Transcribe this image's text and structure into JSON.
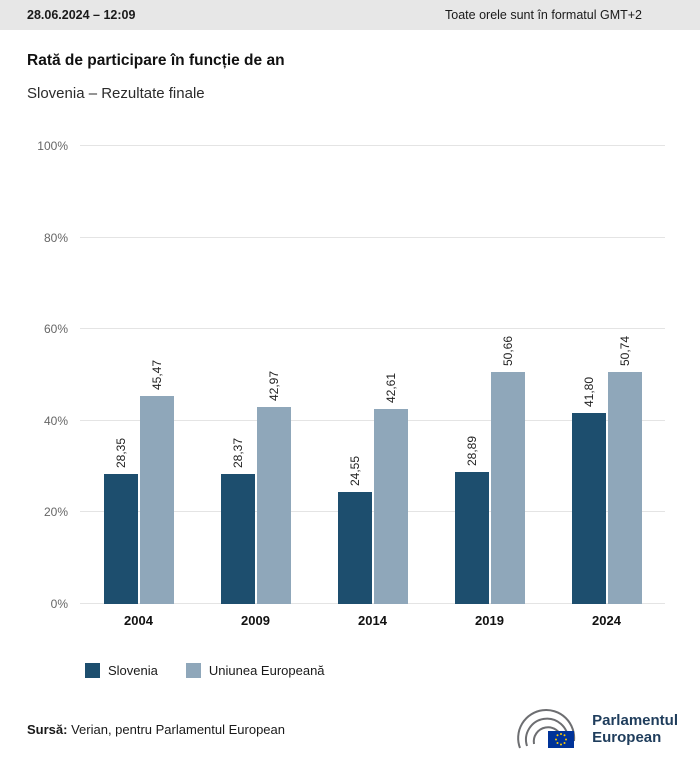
{
  "header": {
    "datetime": "28.06.2024 – 12:09",
    "timezone_note": "Toate orele sunt în formatul GMT+2"
  },
  "title": "Rată de participare în funcție de an",
  "subtitle": "Slovenia – Rezultate finale",
  "chart_data": {
    "type": "bar",
    "categories": [
      "2004",
      "2009",
      "2014",
      "2019",
      "2024"
    ],
    "series": [
      {
        "name": "Slovenia",
        "color": "#1d4e6e",
        "values": [
          28.35,
          28.37,
          24.55,
          28.89,
          41.8
        ],
        "labels": [
          "28,35",
          "28,37",
          "24,55",
          "28,89",
          "41,80"
        ]
      },
      {
        "name": "Uniunea Europeană",
        "color": "#8fa7ba",
        "values": [
          45.47,
          42.97,
          42.61,
          50.66,
          50.74
        ],
        "labels": [
          "45,47",
          "42,97",
          "42,61",
          "50,66",
          "50,74"
        ]
      }
    ],
    "title": "Rată de participare în funcție de an",
    "subtitle": "Slovenia – Rezultate finale",
    "xlabel": "",
    "ylabel": "",
    "ylim": [
      0,
      100
    ],
    "yticks": [
      "0%",
      "20%",
      "40%",
      "60%",
      "80%",
      "100%"
    ],
    "grid": true,
    "legend_position": "bottom",
    "value_label_orientation": "vertical"
  },
  "footer": {
    "source_label": "Sursă:",
    "source_text": " Verian, pentru Parlamentul European"
  },
  "logo": {
    "line1": "Parlamentul",
    "line2": "European",
    "flag_blue": "#003399",
    "star_yellow": "#ffcc00",
    "arc_gray": "#6d6e71"
  }
}
